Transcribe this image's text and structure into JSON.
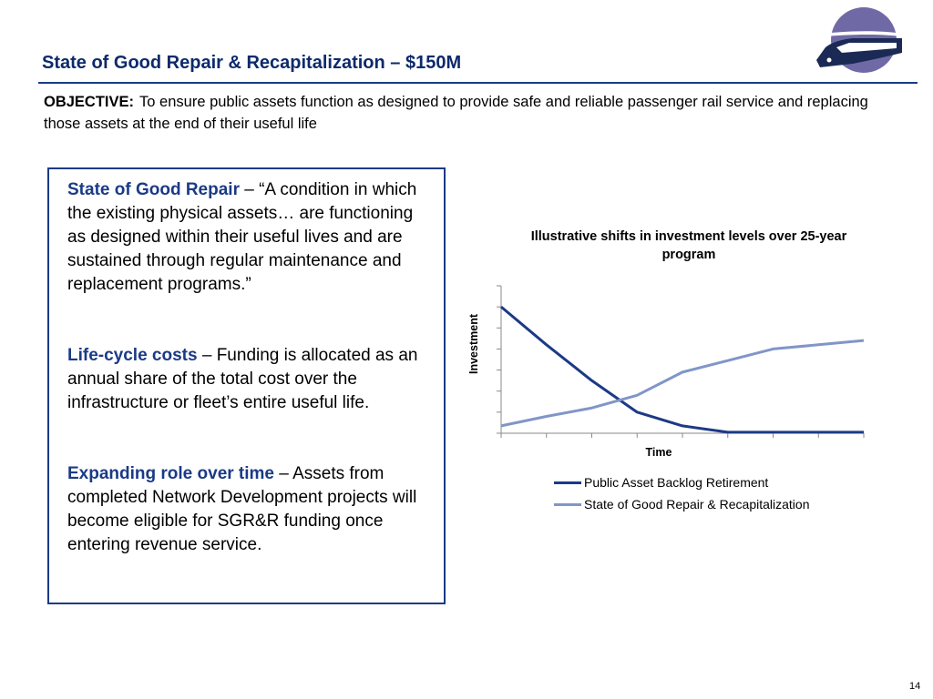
{
  "slide": {
    "title": "State of Good Repair & Recapitalization – $150M",
    "page_number": "14"
  },
  "logo": {
    "icon": "train-icon",
    "circle_color": "#6f6aa6",
    "train_color": "#1b2a55"
  },
  "objective": {
    "label": "OBJECTIVE:",
    "text": "To ensure public assets function as designed to provide safe and reliable passenger rail service and replacing those assets at the end of their useful life"
  },
  "definitions": [
    {
      "term": "State of Good Repair",
      "text": " – “A condition in which the existing physical assets… are functioning as designed within their useful lives and are sustained through regular maintenance and replacement programs.”"
    },
    {
      "term": "Life-cycle costs",
      "text": " – Funding is allocated as an annual share of the total cost over the infrastructure or fleet’s entire useful life."
    },
    {
      "term": "Expanding role over time",
      "text": " – Assets from completed Network Development projects will become eligible for SGR&R funding once entering revenue service."
    }
  ],
  "colors": {
    "accent": "#1b3a86",
    "series_dark": "#1b3a86",
    "series_light": "#8096c8"
  },
  "chart_data": {
    "type": "line",
    "title": "Illustrative shifts in investment levels over 25-year program",
    "xlabel": "Time",
    "ylabel": "Investment",
    "x": [
      0,
      1,
      2,
      3,
      4,
      5,
      6,
      7,
      8
    ],
    "ylim": [
      0,
      7
    ],
    "grid": false,
    "legend_position": "bottom",
    "series": [
      {
        "name": "Public Asset Backlog Retirement",
        "color": "#1b3a86",
        "values": [
          6.0,
          4.2,
          2.5,
          1.0,
          0.35,
          0.05,
          0.05,
          0.05,
          0.05
        ]
      },
      {
        "name": "State of Good Repair & Recapitalization",
        "color": "#8096c8",
        "values": [
          0.35,
          0.8,
          1.2,
          1.8,
          2.9,
          3.45,
          4.0,
          4.2,
          4.4
        ]
      }
    ]
  }
}
